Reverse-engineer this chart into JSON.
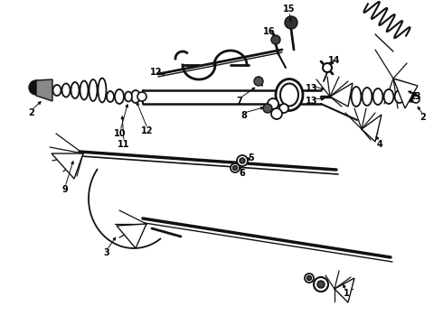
{
  "background_color": "#ffffff",
  "fig_width": 4.9,
  "fig_height": 3.6,
  "dpi": 100,
  "line_color": "#111111",
  "label_fontsize": 7,
  "label_fontweight": "bold",
  "label_color": "#000000"
}
